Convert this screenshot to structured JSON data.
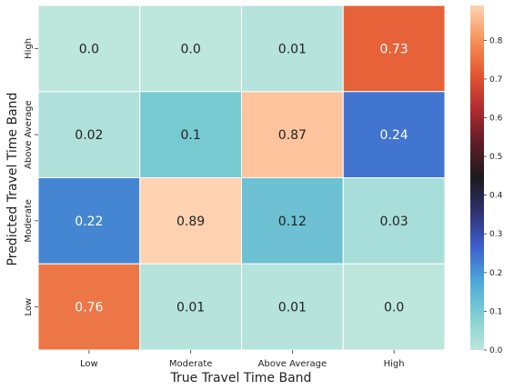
{
  "chart_data": {
    "type": "heatmap",
    "xlabel": "True Travel Time Band",
    "ylabel": "Predicted Travel Time Band",
    "x_categories": [
      "Low",
      "Moderate",
      "Above Average",
      "High"
    ],
    "y_categories": [
      "High",
      "Above Average",
      "Moderate",
      "Low"
    ],
    "values": [
      [
        "0.0",
        "0.0",
        "0.01",
        "0.73"
      ],
      [
        "0.02",
        "0.1",
        "0.87",
        "0.24"
      ],
      [
        "0.22",
        "0.89",
        "0.12",
        "0.03"
      ],
      [
        "0.76",
        "0.01",
        "0.01",
        "0.0"
      ]
    ],
    "colorbar": {
      "range": [
        0,
        0.89
      ],
      "ticks": [
        "0.0",
        "0.1",
        "0.2",
        "0.3",
        "0.4",
        "0.5",
        "0.6",
        "0.7",
        "0.8"
      ],
      "colormap": "icefire",
      "stops": [
        "#bde6dd",
        "#7fcfd0",
        "#4aa8d8",
        "#3d5fcc",
        "#2f3172",
        "#1c1a1c",
        "#5e1d28",
        "#b02c30",
        "#e45530",
        "#f5935a",
        "#ffd2b1"
      ]
    }
  }
}
